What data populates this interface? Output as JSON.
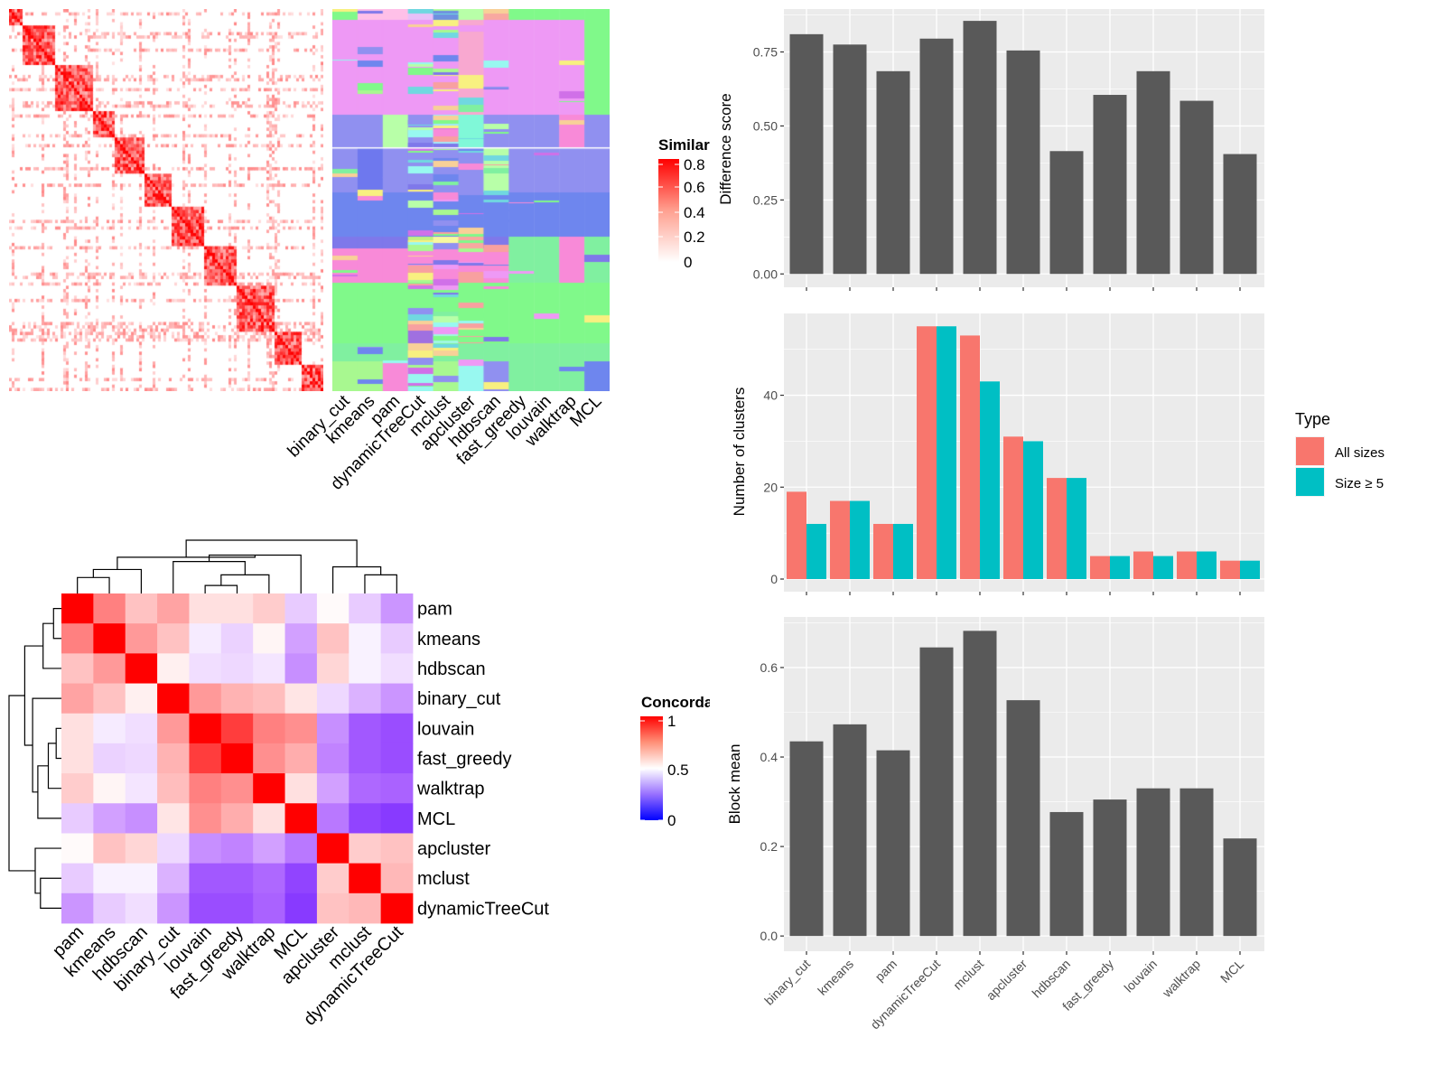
{
  "chart_data": [
    {
      "type": "heatmap",
      "id": "similarity",
      "legend_title": "Similarity",
      "legend_ticks": [
        "0.8",
        "0.6",
        "0.4",
        "0.2",
        "0"
      ],
      "colors": {
        "low": "#FFFFFF",
        "high": "#FF0000"
      }
    },
    {
      "type": "heatmap",
      "id": "cluster_labels",
      "columns": [
        "binary_cut",
        "kmeans",
        "pam",
        "dynamicTreeCut",
        "mclust",
        "apcluster",
        "hdbscan",
        "fast_greedy",
        "louvain",
        "walktrap",
        "MCL"
      ]
    },
    {
      "type": "heatmap",
      "id": "concordance",
      "legend_title": "Concordance",
      "legend_ticks": [
        "1",
        "0.5",
        "0"
      ],
      "colors": {
        "low": "#0000FF",
        "mid": "#FFFFFF",
        "high": "#FF0000"
      },
      "labels": [
        "pam",
        "kmeans",
        "hdbscan",
        "binary_cut",
        "louvain",
        "fast_greedy",
        "walktrap",
        "MCL",
        "apcluster",
        "mclust",
        "dynamicTreeCut"
      ],
      "matrix": [
        [
          1,
          0.75,
          0.62,
          0.68,
          0.56,
          0.56,
          0.6,
          0.42,
          0.51,
          0.42,
          0.33
        ],
        [
          0.75,
          1,
          0.7,
          0.62,
          0.47,
          0.43,
          0.52,
          0.35,
          0.62,
          0.48,
          0.42
        ],
        [
          0.62,
          0.7,
          1,
          0.53,
          0.45,
          0.44,
          0.46,
          0.32,
          0.58,
          0.48,
          0.45
        ],
        [
          0.68,
          0.62,
          0.53,
          1,
          0.7,
          0.65,
          0.63,
          0.55,
          0.44,
          0.38,
          0.33
        ],
        [
          0.56,
          0.47,
          0.45,
          0.7,
          1,
          0.88,
          0.75,
          0.72,
          0.32,
          0.22,
          0.2
        ],
        [
          0.56,
          0.43,
          0.44,
          0.65,
          0.88,
          1,
          0.72,
          0.66,
          0.3,
          0.22,
          0.2
        ],
        [
          0.6,
          0.52,
          0.46,
          0.63,
          0.75,
          0.72,
          1,
          0.56,
          0.35,
          0.25,
          0.24
        ],
        [
          0.42,
          0.35,
          0.32,
          0.55,
          0.72,
          0.66,
          0.56,
          1,
          0.28,
          0.18,
          0.16
        ],
        [
          0.51,
          0.62,
          0.58,
          0.44,
          0.32,
          0.3,
          0.35,
          0.28,
          1,
          0.6,
          0.62
        ],
        [
          0.42,
          0.48,
          0.48,
          0.38,
          0.22,
          0.22,
          0.25,
          0.18,
          0.6,
          1,
          0.64
        ],
        [
          0.33,
          0.42,
          0.45,
          0.33,
          0.2,
          0.2,
          0.24,
          0.16,
          0.62,
          0.64,
          1
        ]
      ]
    },
    {
      "type": "bar",
      "id": "difference",
      "categories": [
        "binary_cut",
        "kmeans",
        "pam",
        "dynamicTreeCut",
        "mclust",
        "apcluster",
        "hdbscan",
        "fast_greedy",
        "louvain",
        "walktrap",
        "MCL"
      ],
      "values": [
        0.81,
        0.775,
        0.685,
        0.795,
        0.855,
        0.755,
        0.415,
        0.605,
        0.685,
        0.585,
        0.405
      ],
      "ylabel": "Difference score",
      "yticks": [
        "0.00",
        "0.25",
        "0.50",
        "0.75"
      ],
      "ylim": [
        -0.045,
        0.895
      ],
      "grid": true,
      "bar_color": "#595959"
    },
    {
      "type": "bar",
      "id": "nclusters",
      "categories": [
        "binary_cut",
        "kmeans",
        "pam",
        "dynamicTreeCut",
        "mclust",
        "apcluster",
        "hdbscan",
        "fast_greedy",
        "louvain",
        "walktrap",
        "MCL"
      ],
      "series": [
        {
          "name": "All sizes",
          "values": [
            19,
            17,
            12,
            55,
            53,
            31,
            22,
            5,
            6,
            6,
            4
          ],
          "color": "#F8766D"
        },
        {
          "name": "Size ≥ 5",
          "values": [
            12,
            17,
            12,
            55,
            43,
            30,
            22,
            5,
            5,
            6,
            4
          ],
          "color": "#00BFC4"
        }
      ],
      "ylabel": "Number of clusters",
      "yticks": [
        "0",
        "20",
        "40"
      ],
      "ylim": [
        -2.75,
        57.8
      ],
      "grid": true,
      "legend_title": "Type",
      "legend_position": "right"
    },
    {
      "type": "bar",
      "id": "blockmean",
      "categories": [
        "binary_cut",
        "kmeans",
        "pam",
        "dynamicTreeCut",
        "mclust",
        "apcluster",
        "hdbscan",
        "fast_greedy",
        "louvain",
        "walktrap",
        "MCL"
      ],
      "values": [
        0.435,
        0.473,
        0.415,
        0.645,
        0.682,
        0.527,
        0.277,
        0.305,
        0.33,
        0.33,
        0.218
      ],
      "ylabel": "Block mean",
      "yticks": [
        "0.0",
        "0.2",
        "0.4",
        "0.6"
      ],
      "ylim": [
        -0.034,
        0.713
      ],
      "grid": true,
      "bar_color": "#595959"
    }
  ]
}
